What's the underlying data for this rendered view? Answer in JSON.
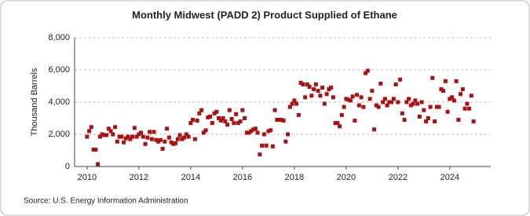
{
  "chart_data": {
    "type": "scatter",
    "title": "Monthly Midwest (PADD 2) Product Supplied of Ethane",
    "y_label": "Thousand Barrels",
    "source": "Source: U.S. Energy Information Administration",
    "color": "#aa1111",
    "grid": true,
    "xlim": [
      2009.52,
      2025.58
    ],
    "xticks": [
      2010,
      2012,
      2014,
      2016,
      2018,
      2020,
      2022,
      2024
    ],
    "ylim": [
      0,
      8000
    ],
    "yticks": [
      0,
      {
        "value": 2000,
        "label": "2,000"
      },
      {
        "value": 4000,
        "label": "4,000"
      },
      {
        "value": 6000,
        "label": "6,000"
      },
      {
        "value": 8000,
        "label": "8,000"
      }
    ],
    "x": [
      2010.0,
      2010.083,
      2010.167,
      2010.25,
      2010.333,
      2010.417,
      2010.5,
      2010.583,
      2010.667,
      2010.75,
      2010.833,
      2010.917,
      2011.0,
      2011.083,
      2011.167,
      2011.25,
      2011.333,
      2011.417,
      2011.5,
      2011.583,
      2011.667,
      2011.75,
      2011.833,
      2011.917,
      2012.0,
      2012.083,
      2012.167,
      2012.25,
      2012.333,
      2012.417,
      2012.5,
      2012.583,
      2012.667,
      2012.75,
      2012.833,
      2012.917,
      2013.0,
      2013.083,
      2013.167,
      2013.25,
      2013.333,
      2013.417,
      2013.5,
      2013.583,
      2013.667,
      2013.75,
      2013.833,
      2013.917,
      2014.0,
      2014.083,
      2014.167,
      2014.25,
      2014.333,
      2014.417,
      2014.5,
      2014.583,
      2014.667,
      2014.75,
      2014.833,
      2014.917,
      2015.0,
      2015.083,
      2015.167,
      2015.25,
      2015.333,
      2015.417,
      2015.5,
      2015.583,
      2015.667,
      2015.75,
      2015.833,
      2015.917,
      2016.0,
      2016.083,
      2016.167,
      2016.25,
      2016.333,
      2016.417,
      2016.5,
      2016.583,
      2016.667,
      2016.75,
      2016.833,
      2016.917,
      2017.0,
      2017.083,
      2017.167,
      2017.25,
      2017.333,
      2017.417,
      2017.5,
      2017.583,
      2017.667,
      2017.75,
      2017.833,
      2017.917,
      2018.0,
      2018.083,
      2018.167,
      2018.25,
      2018.333,
      2018.417,
      2018.5,
      2018.583,
      2018.667,
      2018.75,
      2018.833,
      2018.917,
      2019.0,
      2019.083,
      2019.167,
      2019.25,
      2019.333,
      2019.417,
      2019.5,
      2019.583,
      2019.667,
      2019.75,
      2019.833,
      2019.917,
      2020.0,
      2020.083,
      2020.167,
      2020.25,
      2020.333,
      2020.417,
      2020.5,
      2020.583,
      2020.667,
      2020.75,
      2020.833,
      2020.917,
      2021.0,
      2021.083,
      2021.167,
      2021.25,
      2021.333,
      2021.417,
      2021.5,
      2021.583,
      2021.667,
      2021.75,
      2021.833,
      2021.917,
      2022.0,
      2022.083,
      2022.167,
      2022.25,
      2022.333,
      2022.417,
      2022.5,
      2022.583,
      2022.667,
      2022.75,
      2022.833,
      2022.917,
      2023.0,
      2023.083,
      2023.167,
      2023.25,
      2023.333,
      2023.417,
      2023.5,
      2023.583,
      2023.667,
      2023.75,
      2023.833,
      2023.917,
      2024.0,
      2024.083,
      2024.167,
      2024.25,
      2024.333,
      2024.417,
      2024.5,
      2024.583,
      2024.667,
      2024.75,
      2024.833,
      2024.917
    ],
    "values": [
      1850,
      2200,
      2450,
      1050,
      1050,
      150,
      1850,
      2000,
      1950,
      1950,
      2350,
      2200,
      2000,
      2450,
      1550,
      1850,
      1850,
      1500,
      1750,
      1850,
      1700,
      1850,
      2400,
      1850,
      2000,
      2100,
      1850,
      1400,
      1800,
      2150,
      1700,
      2150,
      1650,
      1550,
      1650,
      1100,
      1550,
      2350,
      1800,
      1500,
      1400,
      1450,
      1700,
      1950,
      1700,
      1800,
      2000,
      1850,
      2700,
      2900,
      1700,
      2850,
      3300,
      3500,
      2100,
      2250,
      3050,
      3100,
      2700,
      3300,
      3400,
      3000,
      2850,
      3000,
      2800,
      2600,
      3500,
      2950,
      2700,
      3250,
      2700,
      2800,
      3500,
      3000,
      2100,
      2100,
      2200,
      2300,
      2350,
      2100,
      750,
      1300,
      2000,
      1300,
      2200,
      2250,
      1250,
      3500,
      2900,
      2900,
      2900,
      2850,
      1550,
      2000,
      3700,
      3900,
      4100,
      3900,
      3200,
      5200,
      5100,
      4300,
      5100,
      4950,
      4400,
      4800,
      5100,
      4700,
      4400,
      4900,
      3900,
      4500,
      4800,
      4900,
      4300,
      2700,
      2700,
      2500,
      3200,
      3700,
      4200,
      4150,
      4100,
      4350,
      2850,
      4450,
      3800,
      4300,
      3700,
      5800,
      5950,
      4200,
      4700,
      2300,
      3800,
      3700,
      5150,
      4000,
      4200,
      3800,
      4000,
      4000,
      4200,
      5100,
      4000,
      5400,
      3300,
      2900,
      4000,
      4200,
      3800,
      3900,
      4100,
      3900,
      3100,
      4000,
      3500,
      2800,
      3000,
      3700,
      5500,
      2800,
      3700,
      3700,
      4800,
      4700,
      5300,
      3400,
      4200,
      4300,
      4100,
      5300,
      2900,
      4500,
      4800,
      3600,
      3900,
      3600,
      4400,
      2800
    ]
  }
}
